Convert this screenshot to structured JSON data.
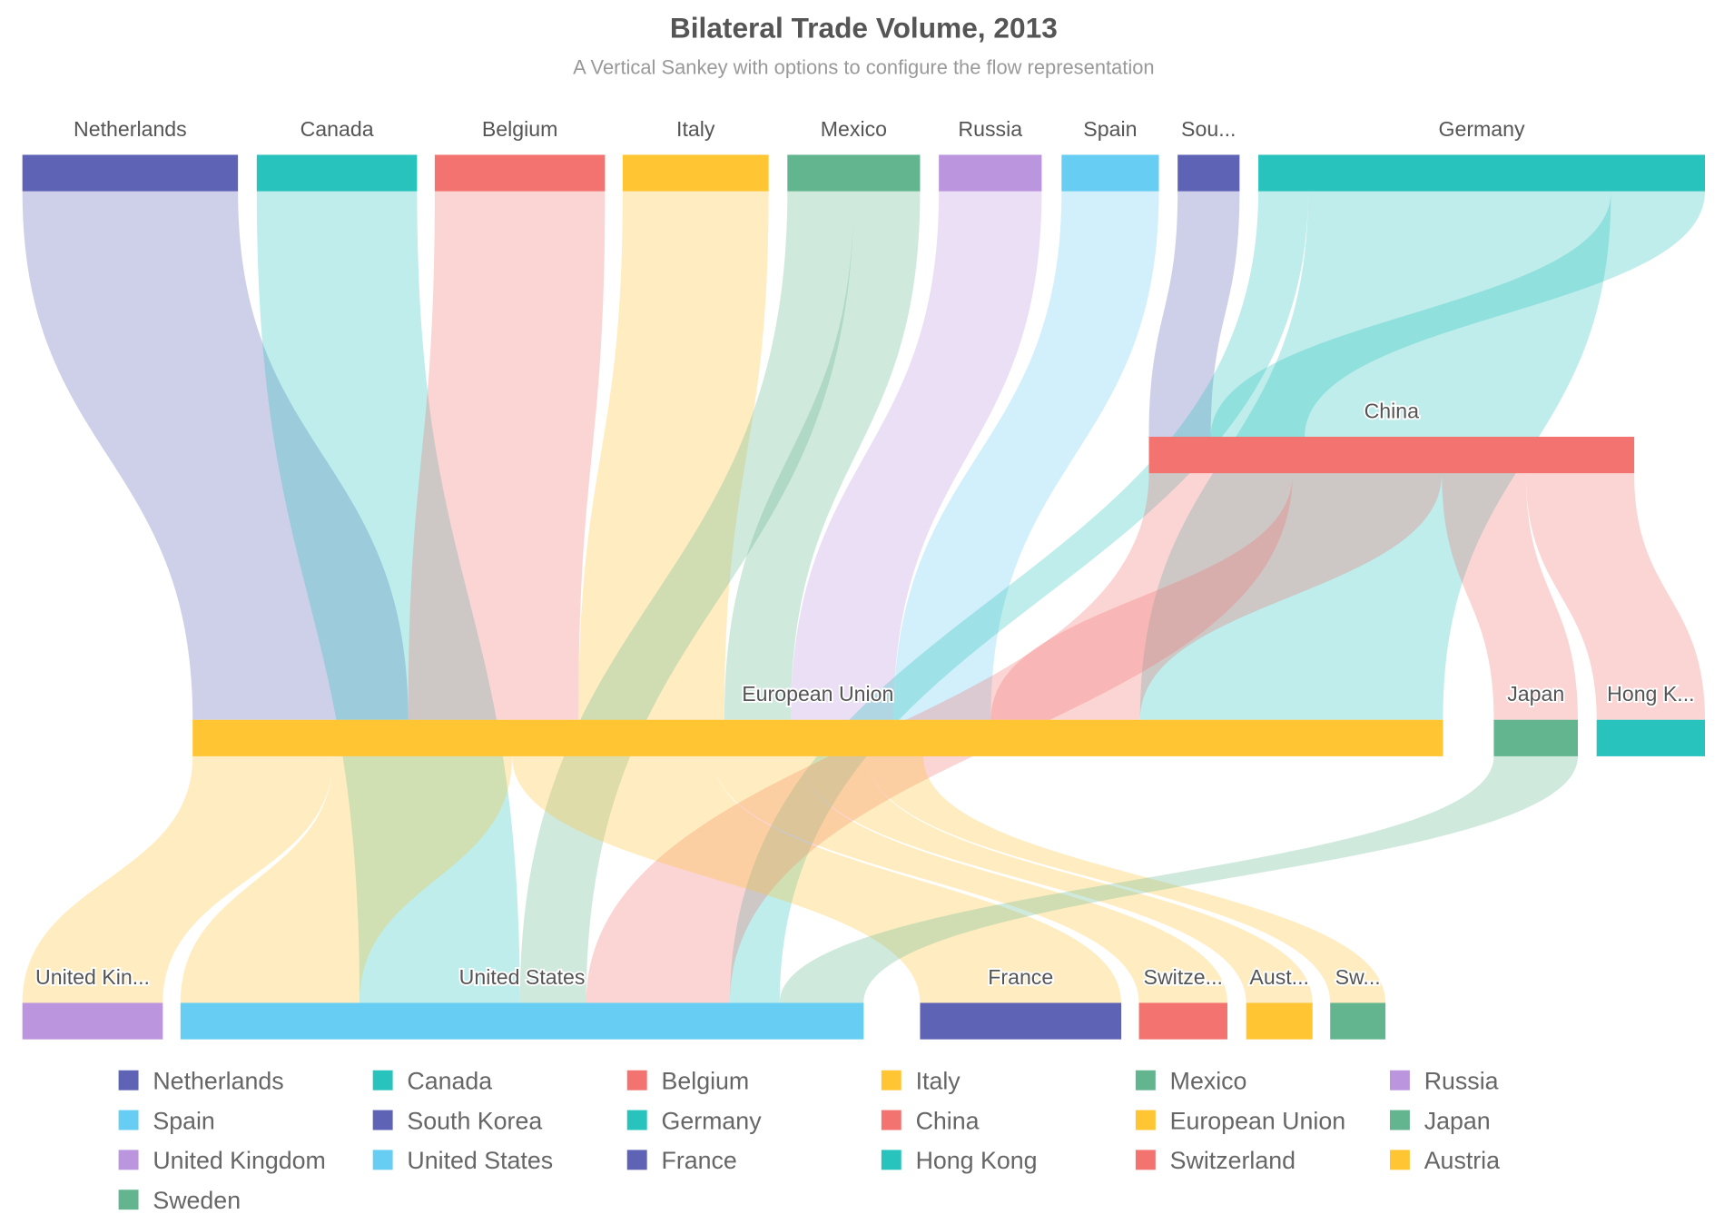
{
  "chart_data": {
    "type": "sankey",
    "title": "Bilateral Trade Volume, 2013",
    "subtitle": "A Vertical Sankey with options to configure the flow representation",
    "nodes": [
      {
        "id": "Netherlands",
        "label": "Netherlands",
        "level": 0,
        "color": "#5E63B6"
      },
      {
        "id": "Canada",
        "label": "Canada",
        "level": 0,
        "color": "#29C3BE"
      },
      {
        "id": "Belgium",
        "label": "Belgium",
        "level": 0,
        "color": "#F27370"
      },
      {
        "id": "Italy",
        "label": "Italy",
        "level": 0,
        "color": "#FFC533"
      },
      {
        "id": "Mexico",
        "label": "Mexico",
        "level": 0,
        "color": "#62B58F"
      },
      {
        "id": "Russia",
        "label": "Russia",
        "level": 0,
        "color": "#BC95DF"
      },
      {
        "id": "Spain",
        "label": "Spain",
        "level": 0,
        "color": "#67CDF2"
      },
      {
        "id": "South Korea",
        "label": "Sou...",
        "level": 0,
        "color": "#5E63B6"
      },
      {
        "id": "Germany",
        "label": "Germany",
        "level": 0,
        "color": "#29C3BE"
      },
      {
        "id": "China",
        "label": "China",
        "level": 1,
        "color": "#F27370"
      },
      {
        "id": "European Union",
        "label": "European Union",
        "level": 2,
        "color": "#FFC533"
      },
      {
        "id": "Japan",
        "label": "Japan",
        "level": 2,
        "color": "#62B58F"
      },
      {
        "id": "Hong Kong",
        "label": "Hong K...",
        "level": 2,
        "color": "#29C3BE"
      },
      {
        "id": "United Kingdom",
        "label": "United Kin...",
        "level": 3,
        "color": "#BC95DF"
      },
      {
        "id": "United States",
        "label": "United States",
        "level": 3,
        "color": "#67CDF2"
      },
      {
        "id": "France",
        "label": "France",
        "level": 3,
        "color": "#5E63B6"
      },
      {
        "id": "Switzerland",
        "label": "Switze...",
        "level": 3,
        "color": "#F27370"
      },
      {
        "id": "Austria",
        "label": "Aust...",
        "level": 3,
        "color": "#FFC533"
      },
      {
        "id": "Sweden",
        "label": "Sw...",
        "level": 3,
        "color": "#62B58F"
      }
    ],
    "links": [
      {
        "source": "Netherlands",
        "target": "European Union",
        "value": 195
      },
      {
        "source": "Canada",
        "target": "United States",
        "value": 145
      },
      {
        "source": "Belgium",
        "target": "European Union",
        "value": 154
      },
      {
        "source": "Italy",
        "target": "European Union",
        "value": 132
      },
      {
        "source": "Mexico",
        "target": "European Union",
        "value": 60
      },
      {
        "source": "Mexico",
        "target": "United States",
        "value": 60
      },
      {
        "source": "Russia",
        "target": "European Union",
        "value": 93
      },
      {
        "source": "Spain",
        "target": "European Union",
        "value": 88
      },
      {
        "source": "South Korea",
        "target": "China",
        "value": 56
      },
      {
        "source": "Germany",
        "target": "European Union",
        "value": 274
      },
      {
        "source": "Germany",
        "target": "China",
        "value": 85
      },
      {
        "source": "Germany",
        "target": "United States",
        "value": 45
      },
      {
        "source": "China",
        "target": "European Union",
        "value": 135
      },
      {
        "source": "China",
        "target": "United States",
        "value": 130
      },
      {
        "source": "China",
        "target": "Japan",
        "value": 76
      },
      {
        "source": "China",
        "target": "Hong Kong",
        "value": 98
      },
      {
        "source": "European Union",
        "target": "United Kingdom",
        "value": 127
      },
      {
        "source": "European Union",
        "target": "United States",
        "value": 162
      },
      {
        "source": "European Union",
        "target": "France",
        "value": 182
      },
      {
        "source": "European Union",
        "target": "Switzerland",
        "value": 80
      },
      {
        "source": "European Union",
        "target": "Austria",
        "value": 60
      },
      {
        "source": "European Union",
        "target": "Sweden",
        "value": 50
      },
      {
        "source": "Japan",
        "target": "United States",
        "value": 76
      }
    ],
    "legend": {
      "placement": "bottom",
      "items": [
        "Netherlands",
        "Canada",
        "Belgium",
        "Italy",
        "Mexico",
        "Russia",
        "Spain",
        "South Korea",
        "Germany",
        "China",
        "European Union",
        "Japan",
        "United Kingdom",
        "United States",
        "France",
        "Hong Kong",
        "Switzerland",
        "Austria",
        "Sweden"
      ]
    }
  }
}
